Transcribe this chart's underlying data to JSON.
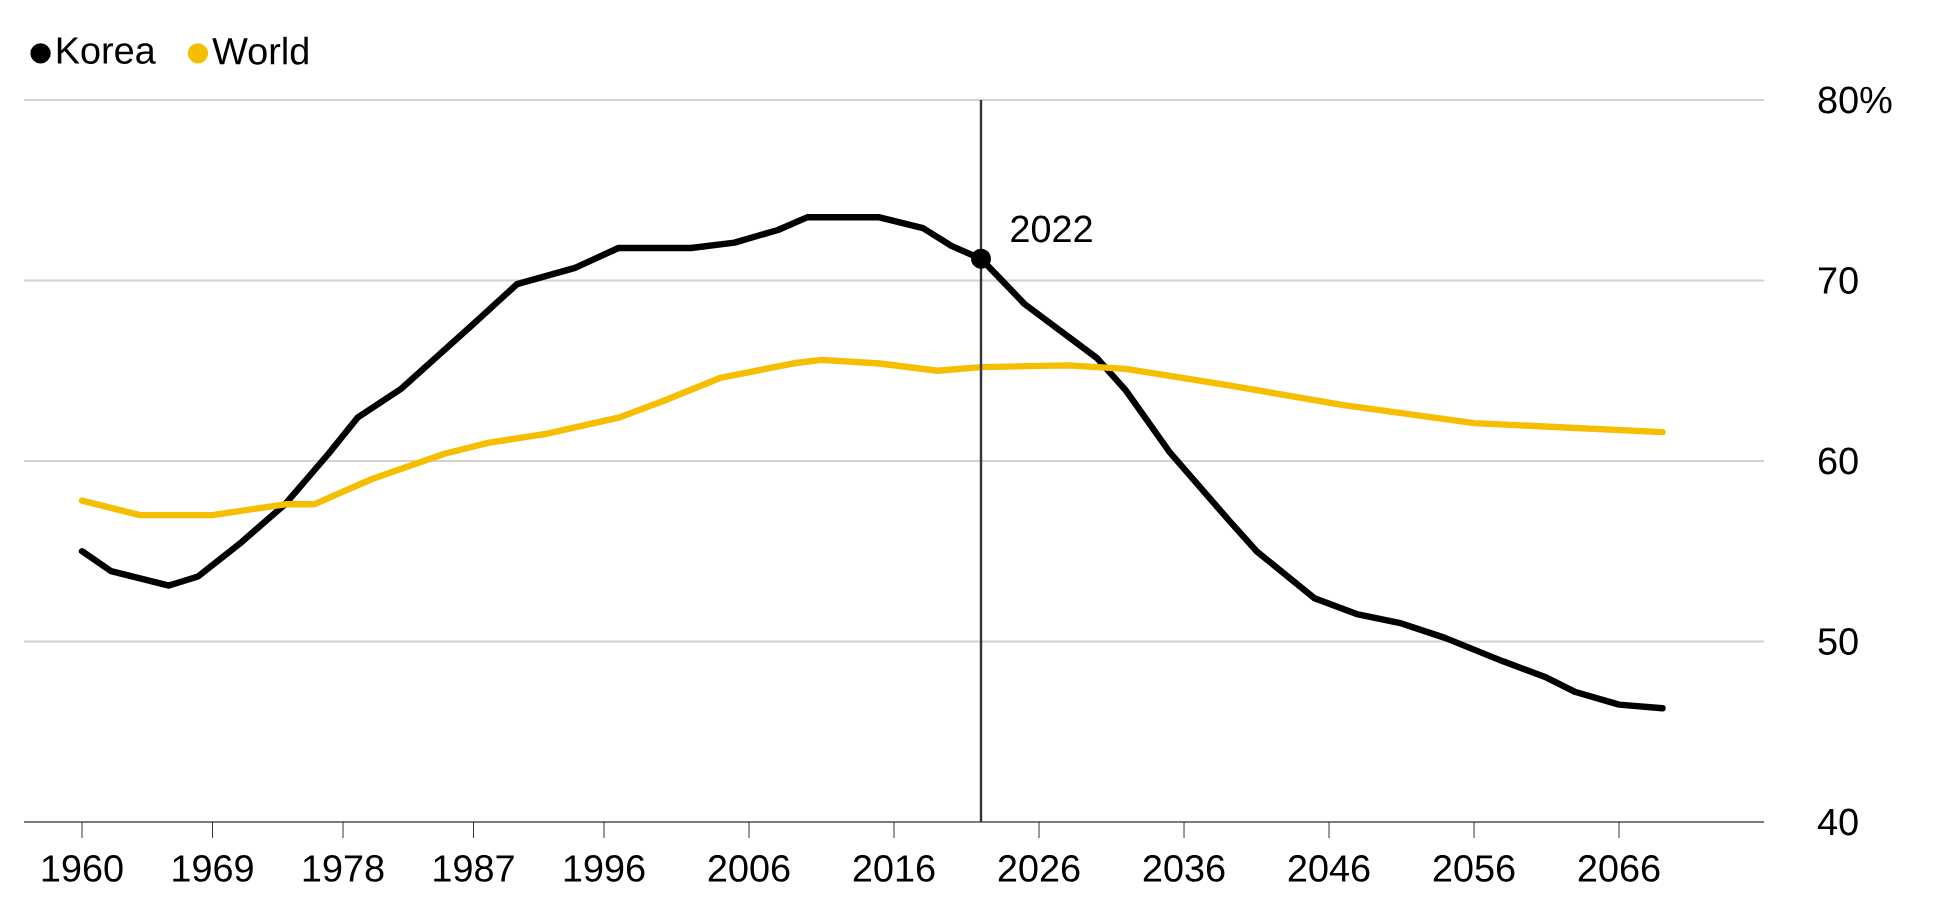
{
  "chart_data": {
    "type": "line",
    "series": [
      {
        "name": "Korea",
        "color": "#000000",
        "x": [
          1960,
          1962,
          1966,
          1968,
          1971,
          1974,
          1977,
          1979,
          1982,
          1987,
          1990,
          1994,
          1997,
          2002,
          2005,
          2008,
          2010,
          2015,
          2018,
          2020,
          2022,
          2025,
          2030,
          2032,
          2035,
          2039,
          2041,
          2045,
          2048,
          2051,
          2054,
          2058,
          2061,
          2063,
          2066,
          2069
        ],
        "values": [
          55.0,
          53.9,
          53.1,
          53.6,
          55.5,
          57.6,
          60.4,
          62.4,
          64.0,
          67.6,
          69.8,
          70.7,
          71.8,
          71.8,
          72.1,
          72.8,
          73.5,
          73.5,
          72.9,
          71.9,
          71.2,
          68.7,
          65.7,
          63.9,
          60.5,
          56.8,
          55.0,
          52.4,
          51.5,
          51.0,
          50.2,
          48.9,
          48.0,
          47.2,
          46.5,
          46.3
        ]
      },
      {
        "name": "World",
        "color": "#f5be00",
        "x": [
          1960,
          1964,
          1969,
          1974,
          1976,
          1980,
          1985,
          1988,
          1992,
          1997,
          2000,
          2004,
          2009,
          2011,
          2015,
          2019,
          2022,
          2028,
          2032,
          2039,
          2047,
          2056,
          2069
        ],
        "values": [
          57.8,
          57.0,
          57.0,
          57.6,
          57.6,
          59.0,
          60.4,
          61.0,
          61.5,
          62.4,
          63.3,
          64.6,
          65.4,
          65.6,
          65.4,
          65.0,
          65.2,
          65.3,
          65.1,
          64.2,
          63.1,
          62.1,
          61.6
        ]
      }
    ],
    "xlim": [
      1956,
      2076
    ],
    "ylim": [
      40,
      80
    ],
    "xticks": [
      1960,
      1969,
      1978,
      1987,
      1996,
      2006,
      2016,
      2026,
      2036,
      2046,
      2056,
      2066
    ],
    "yticks": [
      40,
      50,
      60,
      70,
      {
        "value": 80,
        "label": "80%"
      }
    ],
    "grid": "y",
    "legend": "top left",
    "marker": "none",
    "line_style": "solid",
    "ref_lines": [
      {
        "axis": "x",
        "value": 2022,
        "color": "#333333"
      }
    ],
    "annotations": [
      {
        "text": "2022",
        "x": 2022,
        "y": 71.2
      }
    ]
  }
}
